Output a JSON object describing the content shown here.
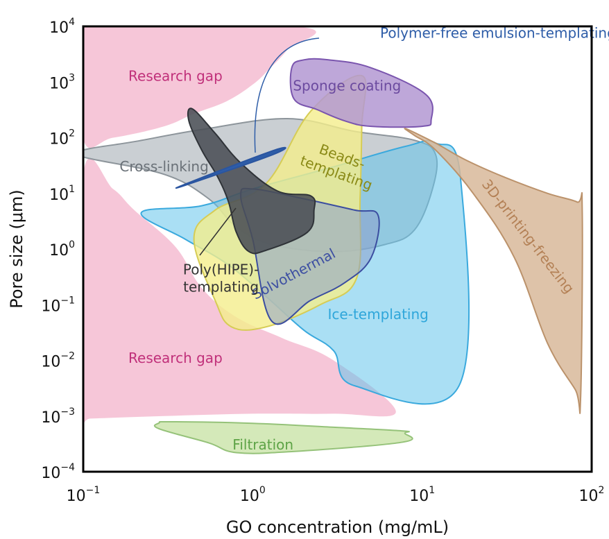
{
  "chart_data": {
    "type": "area",
    "title": "",
    "xlabel": "GO concentration (mg/mL)",
    "ylabel": "Pore size (μm)",
    "x_scale": "log",
    "y_scale": "log",
    "xlim": [
      0.1,
      100
    ],
    "ylim": [
      0.0001,
      10000
    ],
    "grid": false,
    "legend": "none",
    "x_ticks": [
      {
        "value": 0.1,
        "base": "10",
        "exp": "−1"
      },
      {
        "value": 1,
        "base": "10",
        "exp": "0"
      },
      {
        "value": 10,
        "base": "10",
        "exp": "1"
      },
      {
        "value": 100,
        "base": "10",
        "exp": "2"
      }
    ],
    "y_ticks": [
      {
        "value": 0.0001,
        "base": "10",
        "exp": "−4"
      },
      {
        "value": 0.001,
        "base": "10",
        "exp": "−3"
      },
      {
        "value": 0.01,
        "base": "10",
        "exp": "−2"
      },
      {
        "value": 0.1,
        "base": "10",
        "exp": "−1"
      },
      {
        "value": 1,
        "base": "10",
        "exp": "0"
      },
      {
        "value": 10,
        "base": "10",
        "exp": "1"
      },
      {
        "value": 100,
        "base": "10",
        "exp": "2"
      },
      {
        "value": 1000,
        "base": "10",
        "exp": "3"
      },
      {
        "value": 10000,
        "base": "10",
        "exp": "4"
      }
    ],
    "regions": [
      {
        "name": "Research gap",
        "label": "Research gap",
        "fill": "#f4bcd1",
        "stroke": "none",
        "opacity": 0.85,
        "label_color": "#c0307a",
        "label_at": [
          0.35,
          1050
        ],
        "polygon": [
          [
            0.1,
            10000
          ],
          [
            1.95,
            9700
          ],
          [
            1.6,
            3800
          ],
          [
            1.25,
            1700
          ],
          [
            1.0,
            900
          ],
          [
            0.7,
            450
          ],
          [
            0.45,
            270
          ],
          [
            0.3,
            160
          ],
          [
            0.15,
            100
          ],
          [
            0.1,
            95
          ]
        ]
      },
      {
        "name": "Research gap",
        "label": "Research gap",
        "fill": "#f4bcd1",
        "stroke": "none",
        "opacity": 0.85,
        "label_color": "#c0307a",
        "label_at": [
          0.35,
          0.009
        ],
        "polygon": [
          [
            0.1,
            22
          ],
          [
            0.15,
            12
          ],
          [
            0.2,
            5
          ],
          [
            0.35,
            1.1
          ],
          [
            0.5,
            0.2
          ],
          [
            0.8,
            0.06
          ],
          [
            1.5,
            0.025
          ],
          [
            3,
            0.01
          ],
          [
            7,
            0.0012
          ],
          [
            3,
            0.0011
          ],
          [
            1,
            0.0011
          ],
          [
            0.3,
            0.001
          ],
          [
            0.11,
            0.0009
          ],
          [
            0.1,
            0.0009
          ]
        ]
      },
      {
        "name": "Cross-linking",
        "label": "Cross-linking",
        "fill": "#9fa7ae",
        "stroke": "#8d959b",
        "opacity": 0.55,
        "label_color": "#6a7178",
        "label_at": [
          0.3,
          25
        ],
        "polygon": [
          [
            0.1,
            60
          ],
          [
            0.1,
            45
          ],
          [
            0.3,
            22
          ],
          [
            0.55,
            8
          ],
          [
            0.8,
            2.5
          ],
          [
            1.3,
            1.2
          ],
          [
            3,
            0.9
          ],
          [
            6,
            1.2
          ],
          [
            9,
            2.2
          ],
          [
            11.5,
            12
          ],
          [
            12,
            50
          ],
          [
            9,
            90
          ],
          [
            4,
            130
          ],
          [
            1.6,
            220
          ],
          [
            0.5,
            140
          ],
          [
            0.2,
            85
          ]
        ]
      },
      {
        "name": "Ice-templating",
        "label": "Ice-templating",
        "fill": "#64c4eb",
        "stroke": "#3aa9dd",
        "opacity": 0.55,
        "label_color": "#2ea6da",
        "label_at": [
          5.5,
          0.055
        ],
        "polygon": [
          [
            0.22,
            4.5
          ],
          [
            0.4,
            1.5
          ],
          [
            0.7,
            0.55
          ],
          [
            1.2,
            0.14
          ],
          [
            2,
            0.035
          ],
          [
            3,
            0.015
          ],
          [
            4,
            0.0035
          ],
          [
            16.5,
            0.0035
          ],
          [
            16.8,
            20
          ],
          [
            12,
            80
          ],
          [
            8,
            70
          ],
          [
            3,
            30
          ],
          [
            1,
            12
          ],
          [
            0.5,
            6
          ]
        ]
      },
      {
        "name": "Beads-templating",
        "label": "Beads-templating",
        "fill": "#f4ee8c",
        "stroke": "#d6cc55",
        "opacity": 0.8,
        "label_color": "#8a8a16",
        "label_at": [
          3.3,
          38
        ],
        "polygon": [
          [
            4.4,
            1300
          ],
          [
            4.4,
            160
          ],
          [
            4.3,
            8
          ],
          [
            4.1,
            0.3
          ],
          [
            2.5,
            0.1
          ],
          [
            1.2,
            0.04
          ],
          [
            0.75,
            0.04
          ],
          [
            0.6,
            0.12
          ],
          [
            0.45,
            1.5
          ],
          [
            0.6,
            5
          ],
          [
            1.2,
            15
          ],
          [
            2.2,
            300
          ]
        ]
      },
      {
        "name": "Sponge coating",
        "label": "Sponge coating",
        "fill": "#b398d2",
        "stroke": "#7a55ae",
        "opacity": 0.85,
        "label_color": "#6b4a9f",
        "label_at": [
          3.6,
          700
        ],
        "polygon": [
          [
            2.0,
            2500
          ],
          [
            1.7,
            1800
          ],
          [
            1.75,
            500
          ],
          [
            2.4,
            320
          ],
          [
            3.5,
            200
          ],
          [
            5,
            160
          ],
          [
            10,
            160
          ],
          [
            11.3,
            210
          ],
          [
            10.5,
            600
          ],
          [
            5,
            1800
          ],
          [
            2.8,
            2500
          ]
        ]
      },
      {
        "name": "Solvothermal",
        "label": "Solvothermal",
        "fill": "#8a9fcc",
        "stroke": "#3b4da0",
        "opacity": 0.55,
        "label_color": "#3d4fa2",
        "label_at": [
          1.8,
          0.3
        ],
        "polygon": [
          [
            1.3,
            0.05
          ],
          [
            1.0,
            1.5
          ],
          [
            0.85,
            9
          ],
          [
            1.0,
            12
          ],
          [
            2.0,
            8
          ],
          [
            4.0,
            5
          ],
          [
            5.5,
            4
          ],
          [
            5.0,
            0.7
          ],
          [
            3.5,
            0.25
          ],
          [
            2.2,
            0.12
          ]
        ]
      },
      {
        "name": "Poly(HIPE)-templating",
        "label": "Poly(HIPE)-templating",
        "fill": "#4a4f55",
        "stroke": "#2f3338",
        "opacity": 0.88,
        "label_color": "#333333",
        "label_at": [
          0.65,
          0.35
        ],
        "polygon": [
          [
            0.44,
            330
          ],
          [
            0.42,
            200
          ],
          [
            0.5,
            60
          ],
          [
            0.62,
            20
          ],
          [
            0.72,
            7
          ],
          [
            0.8,
            2
          ],
          [
            0.95,
            0.9
          ],
          [
            1.2,
            0.95
          ],
          [
            2.1,
            2.0
          ],
          [
            2.3,
            5
          ],
          [
            2.2,
            9
          ],
          [
            1.4,
            11
          ],
          [
            0.85,
            35
          ],
          [
            0.6,
            120
          ]
        ]
      },
      {
        "name": "3D-printing-freezing",
        "label": "3D-printing-freezing",
        "fill": "#d8b89a",
        "stroke": "#bb926b",
        "opacity": 0.85,
        "label_color": "#b38055",
        "label_at": [
          40,
          1.5
        ],
        "polygon": [
          [
            8,
            145
          ],
          [
            12,
            80
          ],
          [
            18,
            40
          ],
          [
            30,
            20
          ],
          [
            55,
            10
          ],
          [
            82,
            7
          ],
          [
            88,
            5
          ],
          [
            86,
            0.002
          ],
          [
            80,
            0.003
          ],
          [
            55,
            0.02
          ],
          [
            35,
            0.7
          ],
          [
            20,
            10
          ],
          [
            12,
            60
          ],
          [
            9,
            110
          ]
        ]
      },
      {
        "name": "Filtration",
        "label": "Filtration",
        "fill": "#cfe7b1",
        "stroke": "#95c279",
        "opacity": 0.9,
        "label_color": "#5da346",
        "label_at": [
          1.15,
          0.00025
        ],
        "polygon": [
          [
            0.28,
            0.00075
          ],
          [
            0.28,
            0.00059
          ],
          [
            0.55,
            0.00033
          ],
          [
            0.8,
            0.00022
          ],
          [
            1.7,
            0.00023
          ],
          [
            7.7,
            0.00034
          ],
          [
            7.9,
            0.00049
          ],
          [
            7.7,
            0.00054
          ],
          [
            3,
            0.00063
          ],
          [
            1,
            0.00074
          ],
          [
            0.33,
            0.00079
          ]
        ]
      },
      {
        "name": "Polymer-free emulsion-templating",
        "label": "Polymer-free emulsion-templating",
        "fill": "#2e5da8",
        "stroke": "#2a55a0",
        "opacity": 1.0,
        "label_color": "#2e5da8",
        "label_at": [
          28,
          6200
        ],
        "polygon": [
          [
            0.43,
            16
          ],
          [
            1.35,
            60
          ],
          [
            1.32,
            50
          ],
          [
            0.4,
            14
          ]
        ]
      }
    ]
  }
}
